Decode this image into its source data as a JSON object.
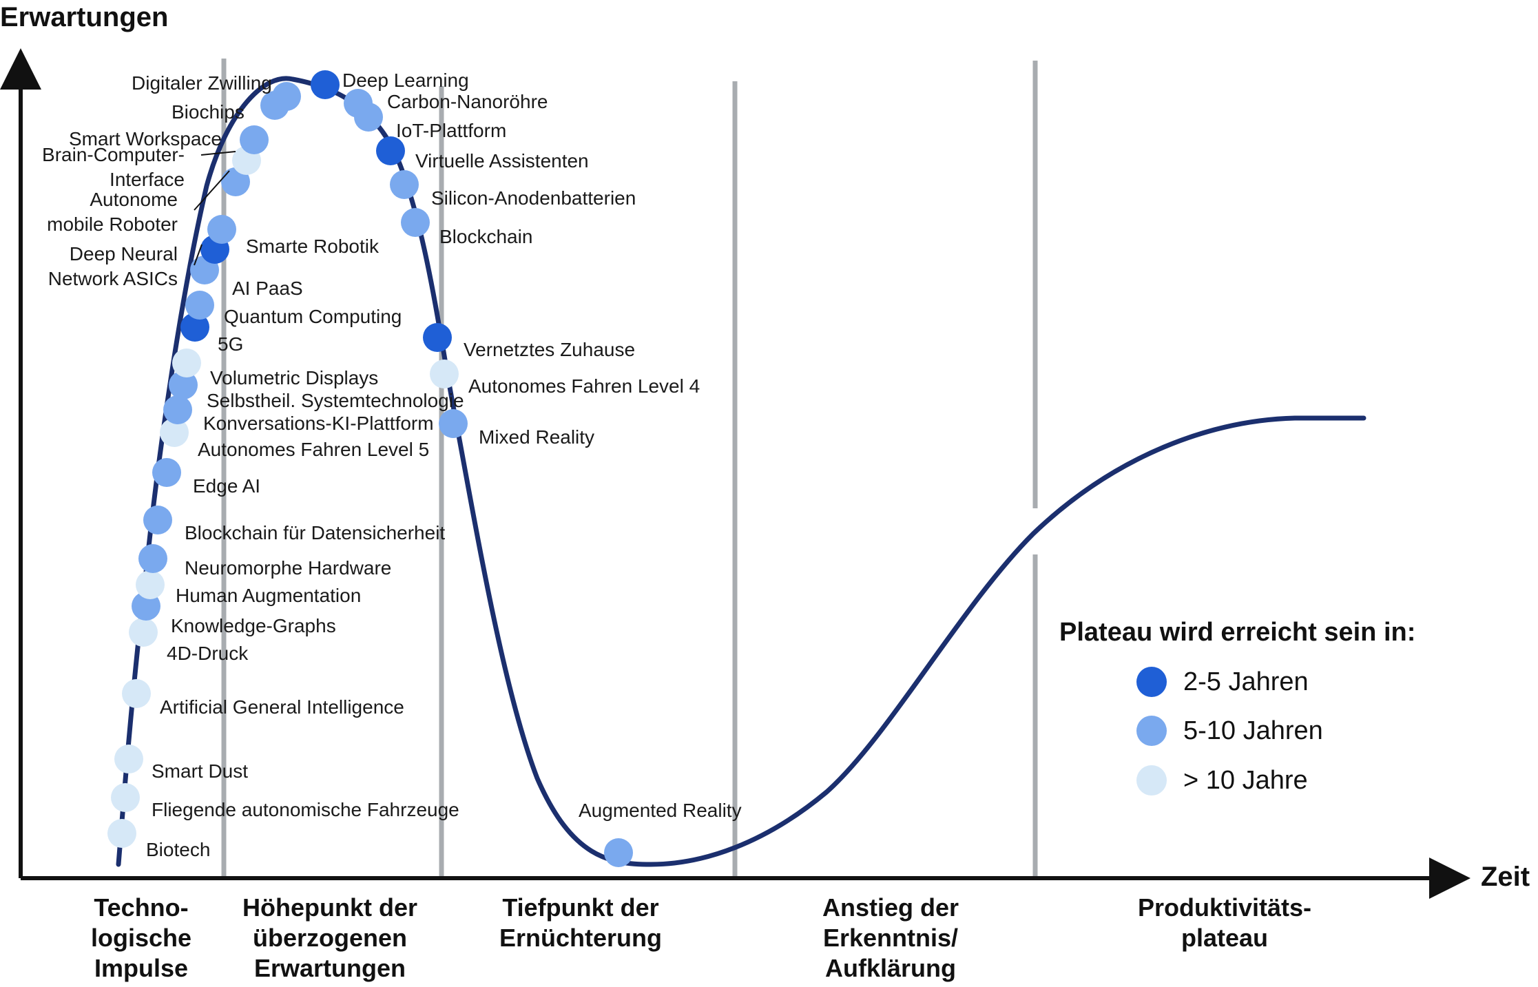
{
  "axes": {
    "y_title": "Erwartungen",
    "x_title": "Zeit"
  },
  "phases": [
    [
      "Techno-",
      "logische",
      "Impulse"
    ],
    [
      "Höhepunkt der",
      "überzogenen",
      "Erwartungen"
    ],
    [
      "Tiefpunkt der",
      "Ernüchterung"
    ],
    [
      "Anstieg der",
      "Erkenntnis/",
      "Aufklärung"
    ],
    [
      "Produktivitäts-",
      "plateau"
    ]
  ],
  "legend": {
    "title": "Plateau wird erreicht sein in:",
    "items": [
      {
        "label": "2-5 Jahren",
        "color": "#1f5fd6"
      },
      {
        "label": "5-10 Jahren",
        "color": "#7aa9ee"
      },
      {
        "label": "> 10 Jahre",
        "color": "#d6e8f7"
      }
    ]
  },
  "chart_data": {
    "type": "scatter",
    "curve": "hype-cycle",
    "categories_legend": [
      "2-5 Jahren",
      "5-10 Jahren",
      "> 10 Jahre"
    ],
    "points": [
      {
        "name": "Biotech",
        "cat": 2
      },
      {
        "name": "Fliegende autonomische Fahrzeuge",
        "cat": 2
      },
      {
        "name": "Smart Dust",
        "cat": 2
      },
      {
        "name": "Artificial General Intelligence",
        "cat": 2
      },
      {
        "name": "4D-Druck",
        "cat": 2
      },
      {
        "name": "Knowledge-Graphs",
        "cat": 1
      },
      {
        "name": "Human Augmentation",
        "cat": 2
      },
      {
        "name": "Neuromorphe Hardware",
        "cat": 1
      },
      {
        "name": "Blockchain für Datensicherheit",
        "cat": 1
      },
      {
        "name": "Edge AI",
        "cat": 1
      },
      {
        "name": "Autonomes Fahren Level 5",
        "cat": 2
      },
      {
        "name": "Konversations-KI-Plattform",
        "cat": 1
      },
      {
        "name": "Selbstheil. Systemtechnologie",
        "cat": 1
      },
      {
        "name": "Volumetric Displays",
        "cat": 2
      },
      {
        "name": "5G",
        "cat": 0
      },
      {
        "name": "Quantum Computing",
        "cat": 1
      },
      {
        "name": "AI PaaS",
        "cat": 1
      },
      {
        "name": "Deep Neural Network ASICs",
        "cat": 0
      },
      {
        "name": "Smarte Robotik",
        "cat": 1
      },
      {
        "name": "Autonome mobile Roboter",
        "cat": 1
      },
      {
        "name": "Brain-Computer-Interface",
        "cat": 2
      },
      {
        "name": "Smart Workspace",
        "cat": 1
      },
      {
        "name": "Biochips",
        "cat": 1
      },
      {
        "name": "Digitaler Zwilling",
        "cat": 1
      },
      {
        "name": "Deep Learning",
        "cat": 0
      },
      {
        "name": "Carbon-Nanoröhre",
        "cat": 1
      },
      {
        "name": "IoT-Plattform",
        "cat": 1
      },
      {
        "name": "Virtuelle Assistenten",
        "cat": 0
      },
      {
        "name": "Silicon-Anodenbatterien",
        "cat": 1
      },
      {
        "name": "Blockchain",
        "cat": 1
      },
      {
        "name": "Vernetztes Zuhause",
        "cat": 0
      },
      {
        "name": "Autonomes Fahren Level 4",
        "cat": 2
      },
      {
        "name": "Mixed Reality",
        "cat": 1
      },
      {
        "name": "Augmented Reality",
        "cat": 1
      }
    ]
  }
}
